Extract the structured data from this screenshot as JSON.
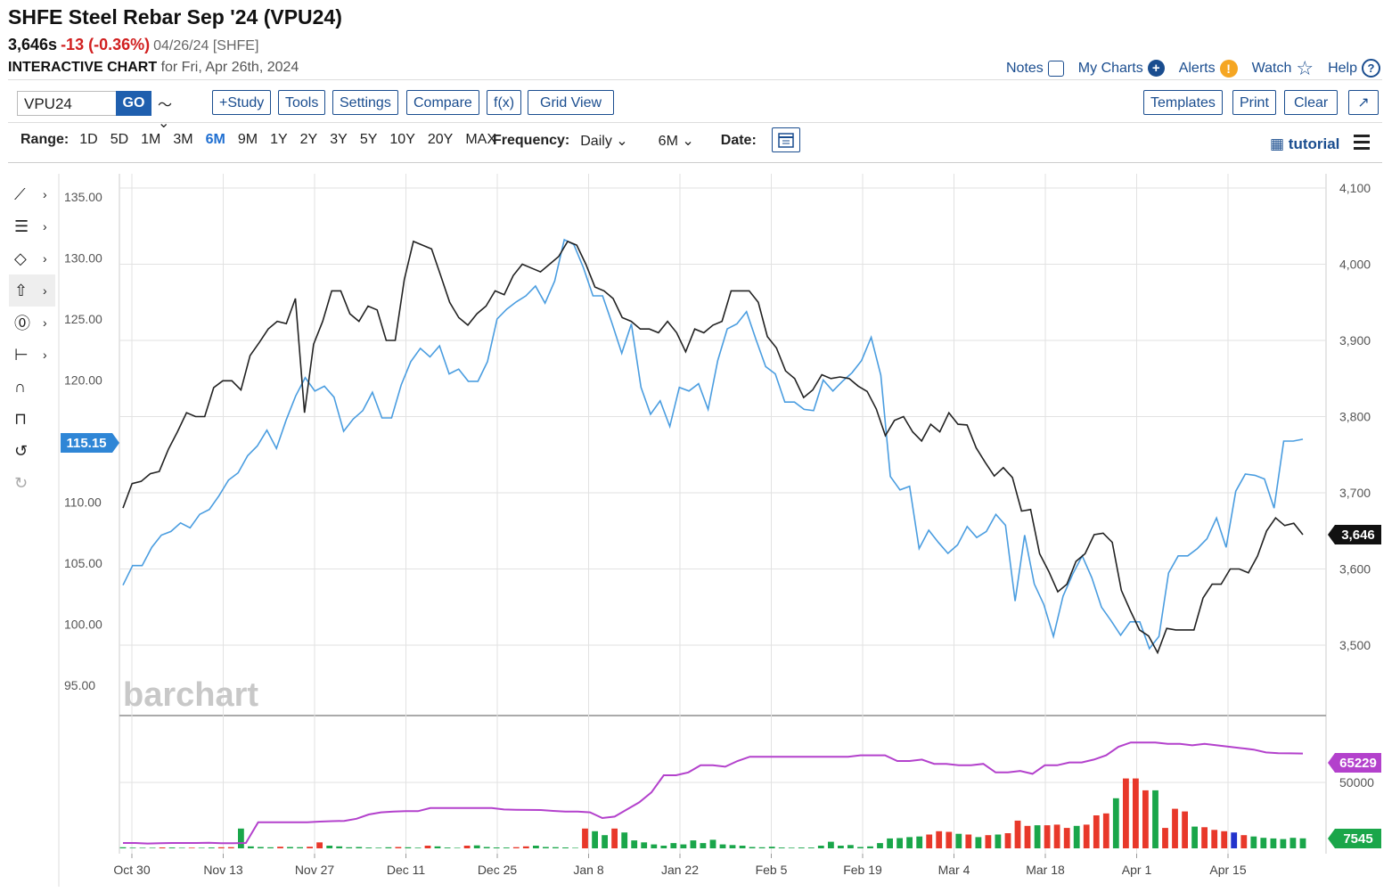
{
  "header": {
    "title": "SHFE Steel Rebar Sep '24 (VPU24)",
    "price": "3,646s",
    "change": "-13 (-0.36%)",
    "date_exchange": "04/26/24 [SHFE]",
    "chart_label": "INTERACTIVE CHART",
    "chart_for": "for Fri, Apr 26th, 2024"
  },
  "links": {
    "notes": "Notes",
    "my_charts": "My Charts",
    "alerts": "Alerts",
    "watch": "Watch",
    "help": "Help"
  },
  "toolbar": {
    "symbol": "VPU24",
    "go": "GO",
    "study": "+Study",
    "tools": "Tools",
    "settings": "Settings",
    "compare": "Compare",
    "fx": "f(x)",
    "grid_view": "Grid View",
    "templates": "Templates",
    "print": "Print",
    "clear": "Clear"
  },
  "range": {
    "label": "Range:",
    "options": [
      "1D",
      "5D",
      "1M",
      "3M",
      "6M",
      "9M",
      "1Y",
      "2Y",
      "3Y",
      "5Y",
      "10Y",
      "20Y",
      "MAX"
    ],
    "active": "6M"
  },
  "frequency": {
    "label": "Frequency:",
    "value": "Daily",
    "period": "6M",
    "date_label": "Date:"
  },
  "tutorial": "tutorial",
  "watermark": "barchart",
  "colors": {
    "price_line": "#222222",
    "compare_line": "#4a9de0",
    "volume_up": "#1aa64a",
    "volume_down": "#e8382a",
    "volume_neutral": "#2233cc",
    "open_interest": "#b341cc",
    "left_badge": "#2f86d6"
  },
  "chart_data": {
    "type": "line",
    "x_ticks": [
      "Oct 30",
      "Nov 13",
      "Nov 27",
      "Dec 11",
      "Dec 25",
      "Jan 8",
      "Jan 22",
      "Feb 5",
      "Feb 19",
      "Mar 4",
      "Mar 18",
      "Apr 1",
      "Apr 15"
    ],
    "left_axis": {
      "ticks": [
        "135.00",
        "130.00",
        "125.00",
        "120.00",
        "115.00",
        "110.00",
        "105.00",
        "100.00",
        "95.00"
      ],
      "range": [
        95,
        135
      ],
      "last_label": "115.15"
    },
    "right_axis": {
      "ticks": [
        "4,100",
        "4,000",
        "3,900",
        "3,800",
        "3,700",
        "3,600",
        "3,500"
      ],
      "range": [
        3460,
        4110
      ],
      "last_label": "3,646"
    },
    "volume_axis": {
      "ticks": [
        "50000"
      ],
      "oi_last_label": "65229",
      "volume_last_label": "7545"
    },
    "series": [
      {
        "axis": "right",
        "values": [
          3680,
          3712,
          3715,
          3725,
          3728,
          3757,
          3780,
          3805,
          3800,
          3800,
          3838,
          3847,
          3847,
          3835,
          3880,
          3897,
          3915,
          3925,
          3922,
          3955,
          3805,
          3895,
          3925,
          3965,
          3965,
          3935,
          3925,
          3945,
          3940,
          3900,
          3900,
          3980,
          4030,
          4025,
          4020,
          3985,
          3950,
          3930,
          3920,
          3935,
          3945,
          3965,
          3960,
          3985,
          4000,
          3995,
          3990,
          4000,
          4010,
          4030,
          4025,
          4000,
          3970,
          3965,
          3955,
          3930,
          3925,
          3915,
          3915,
          3910,
          3925,
          3910,
          3885,
          3915,
          3910,
          3920,
          3925,
          3965,
          3965,
          3965,
          3950,
          3905,
          3890,
          3860,
          3850,
          3825,
          3835,
          3855,
          3850,
          3852,
          3850,
          3840,
          3833,
          3810,
          3775,
          3795,
          3800,
          3780,
          3768,
          3790,
          3780,
          3805,
          3790,
          3789,
          3759,
          3740,
          3722,
          3733,
          3720,
          3676,
          3678,
          3620,
          3597,
          3570,
          3580,
          3610,
          3620,
          3645,
          3647,
          3635,
          3572,
          3545,
          3520,
          3512,
          3490,
          3522,
          3520,
          3520,
          3520,
          3562,
          3580,
          3580,
          3600,
          3600,
          3595,
          3617,
          3650,
          3667,
          3657,
          3660,
          3645
        ],
        "extra_note": ""
      },
      {
        "axis": "left",
        "values": [
          103.2,
          104.8,
          104.8,
          106.3,
          107.3,
          107.6,
          108.3,
          107.9,
          109.0,
          109.4,
          110.5,
          111.8,
          112.4,
          113.8,
          114.6,
          115.9,
          114.4,
          116.7,
          118.7,
          120.2,
          119.1,
          119.5,
          118.6,
          115.8,
          116.8,
          117.5,
          119.0,
          116.9,
          116.9,
          119.6,
          121.5,
          122.6,
          121.9,
          122.8,
          120.5,
          120.9,
          119.9,
          119.9,
          121.5,
          125.0,
          125.8,
          126.4,
          126.9,
          127.7,
          126.3,
          128.1,
          131.5,
          131.1,
          129.2,
          126.9,
          126.9,
          124.6,
          122.2,
          124.6,
          119.4,
          117.2,
          118.3,
          116.2,
          119.4,
          119.1,
          119.7,
          117.6,
          121.6,
          124.2,
          124.6,
          125.6,
          123.3,
          121.1,
          120.5,
          118.2,
          118.2,
          117.6,
          117.5,
          120.0,
          119.1,
          119.9,
          120.6,
          121.6,
          123.5,
          120.4,
          112.1,
          111.0,
          111.3,
          106.2,
          107.7,
          106.7,
          105.8,
          106.5,
          108.0,
          107.1,
          107.6,
          109.0,
          108.1,
          101.9,
          107.3,
          103.3,
          101.6,
          99.0,
          102.3,
          104.1,
          105.6,
          103.8,
          101.4,
          100.3,
          99.1,
          100.2,
          100.2,
          98.0,
          99.0,
          104.2,
          105.6,
          105.6,
          106.2,
          107.0,
          108.7,
          106.3,
          110.9,
          112.3,
          112.2,
          111.9,
          109.5,
          115.0,
          115.0,
          115.15
        ],
        "extra_note": ""
      }
    ],
    "open_interest": {
      "values": [
        2500,
        2500,
        2100,
        2400,
        2500,
        2500,
        2500,
        2600,
        2400,
        2400,
        2500,
        17000,
        17000,
        17000,
        17000,
        17000,
        17500,
        17800,
        18000,
        19500,
        22500,
        24000,
        24500,
        24800,
        24800,
        27000,
        27000,
        27000,
        27000,
        27000,
        27000,
        26000,
        25800,
        25700,
        25600,
        25000,
        24500,
        24500,
        24000,
        20000,
        21000,
        26000,
        31000,
        38000,
        50000,
        50000,
        52000,
        57000,
        57000,
        56000,
        60000,
        63000,
        63000,
        63000,
        63000,
        63000,
        63000,
        63000,
        63000,
        63000,
        64000,
        64000,
        64000,
        60000,
        60000,
        61000,
        58000,
        58000,
        57000,
        57000,
        58000,
        52000,
        52000,
        53000,
        51000,
        57000,
        57000,
        59000,
        59000,
        61000,
        64000,
        70000,
        73000,
        73000,
        73000,
        72000,
        72000,
        71000,
        72000,
        71000,
        70000,
        69000,
        68000,
        66000,
        65500,
        65400,
        65229
      ]
    },
    "volume": {
      "values": [
        800,
        500,
        400,
        400,
        700,
        600,
        400,
        500,
        400,
        600,
        800,
        900,
        15000,
        1500,
        1000,
        800,
        1200,
        1000,
        900,
        1200,
        4500,
        2000,
        1500,
        800,
        1000,
        600,
        500,
        800,
        1000,
        800,
        500,
        2000,
        1500,
        600,
        400,
        2000,
        2200,
        1000,
        700,
        600,
        900,
        1500,
        2000,
        1000,
        900,
        700,
        400,
        15000,
        13000,
        10000,
        15000,
        12000,
        6000,
        4500,
        3000,
        2000,
        4000,
        3000,
        6000,
        4000,
        6500,
        3000,
        2500,
        2000,
        1000,
        800,
        1200,
        600,
        500,
        600,
        600,
        2000,
        5000,
        2000,
        2500,
        1000,
        1500,
        4000,
        7500,
        7800,
        8500,
        9000,
        10500,
        13000,
        12500,
        11000,
        10500,
        8500,
        10000,
        10500,
        11500,
        21000,
        17000,
        17500,
        17500,
        18000,
        15500,
        17000,
        18000,
        25000,
        26500,
        38000,
        53000,
        53000,
        44000,
        44000,
        15500,
        30000,
        28000,
        16500,
        16000,
        14000,
        13000,
        12000,
        10000,
        9000,
        8000,
        7500,
        7000,
        8000,
        7545
      ]
    }
  }
}
